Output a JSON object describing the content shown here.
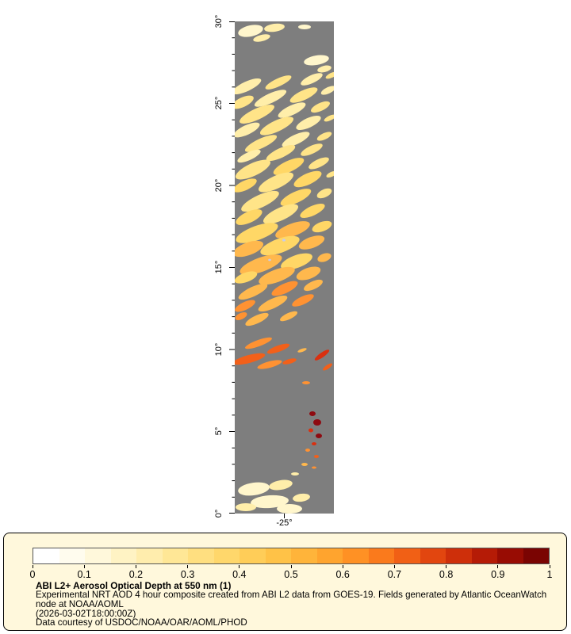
{
  "page": {
    "background": "#FFFFFF"
  },
  "map": {
    "y_tick_labels": [
      "30°",
      "25°",
      "20°",
      "15°",
      "10°",
      "5°",
      "0°"
    ],
    "x_tick_label": "-25°",
    "palette": {
      "no_data_gray": "#7E7E7E",
      "aod_very_low": "#FFF6CC",
      "aod_low": "#FFEEAA",
      "aod_moderate": "#FFE488",
      "aod_elevated": "#FFD766",
      "aod_high": "#FFB84D",
      "aod_higher": "#FF9232",
      "aod_very_high": "#F2601A",
      "aod_severe": "#D93010",
      "aod_extreme": "#8E0A10",
      "speck_lavender": "#C9CCE8"
    }
  },
  "legend": {
    "background": "#FFF8DC",
    "border_color": "#000000",
    "colors": [
      "#FFFFFF",
      "#FFFCEE",
      "#FFF8DB",
      "#FFF3C4",
      "#FFEDAD",
      "#FFE796",
      "#FFDF80",
      "#FFD76B",
      "#FFCD58",
      "#FFC247",
      "#FFB43A",
      "#FFA42E",
      "#FF9124",
      "#FA7A1C",
      "#F16015",
      "#E2460F",
      "#CE2F0A",
      "#B51B06",
      "#980C03",
      "#7A0402"
    ],
    "ticks": [
      "0",
      "0.1",
      "0.2",
      "0.3",
      "0.4",
      "0.5",
      "0.6",
      "0.7",
      "0.8",
      "0.9",
      "1"
    ],
    "title": "ABI L2+ Aerosol Optical Depth at 550 nm (1)",
    "description": "Experimental NRT AOD 4 hour composite created from ABI L2 data from GOES-19. Fields generated by Atlantic OceanWatch node at NOAA/AOML",
    "timestamp": "(2026-03-02T18:00:00Z)",
    "courtesy": "Data courtesy of USDOC/NOAA/OAR/AOML/PHOD"
  }
}
